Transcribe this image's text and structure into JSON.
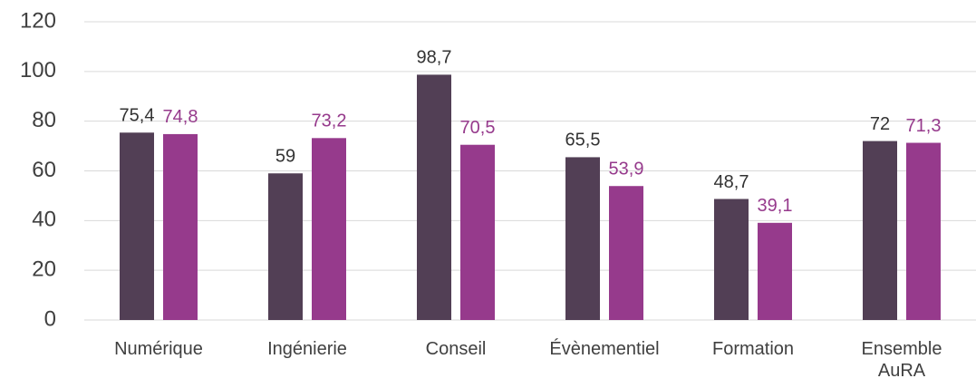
{
  "chart_data": {
    "type": "bar",
    "categories": [
      "Numérique",
      "Ingénierie",
      "Conseil",
      "Évènementiel",
      "Formation",
      "Ensemble AuRA"
    ],
    "series": [
      {
        "color": "#523f55",
        "values": [
          75.4,
          59,
          98.7,
          65.5,
          48.7,
          72
        ],
        "value_labels": [
          "75,4",
          "59",
          "98,7",
          "65,5",
          "48,7",
          "72"
        ]
      },
      {
        "color": "#963a8c",
        "values": [
          74.8,
          73.2,
          70.5,
          53.9,
          39.1,
          71.3
        ],
        "value_labels": [
          "74,8",
          "73,2",
          "70,5",
          "53,9",
          "39,1",
          "71,3"
        ]
      }
    ],
    "ylim": [
      0,
      120
    ],
    "yticks": [
      0,
      20,
      40,
      60,
      80,
      100,
      120
    ],
    "grid": true
  }
}
